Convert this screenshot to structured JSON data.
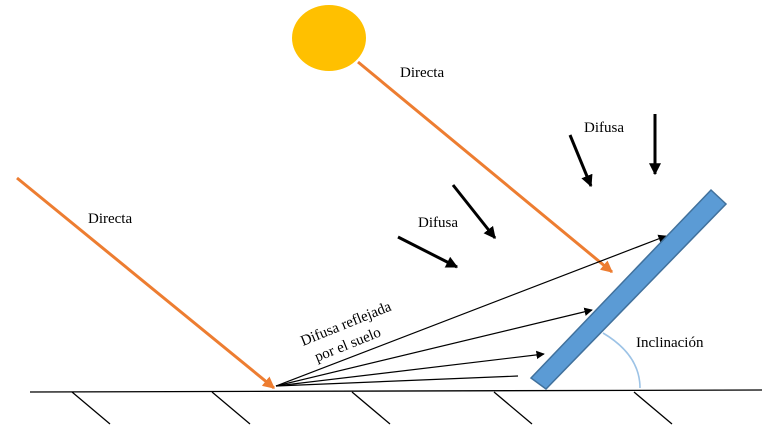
{
  "labels": {
    "direct_top": "Directa",
    "direct_left": "Directa",
    "diffuse_top": "Difusa",
    "diffuse_mid": "Difusa",
    "reflected_line1": "Difusa reflejada",
    "reflected_line2": "por el suelo",
    "tilt": "Inclinación"
  },
  "colors": {
    "sun": "#FFC000",
    "direct_ray": "#ED7D31",
    "panel_fill": "#5B9BD5",
    "panel_stroke": "#41719C",
    "tilt_arc": "#9DC3E6",
    "ground": "#000000"
  }
}
